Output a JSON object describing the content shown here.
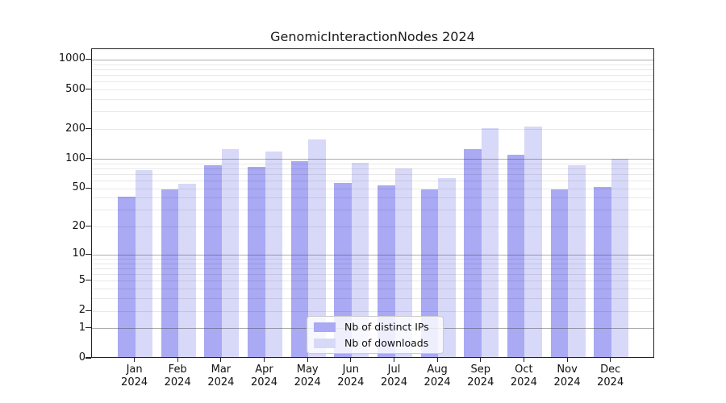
{
  "chart_data": {
    "type": "bar",
    "title": "GenomicInteractionNodes 2024",
    "categories": [
      "Jan",
      "Feb",
      "Mar",
      "Apr",
      "May",
      "Jun",
      "Jul",
      "Aug",
      "Sep",
      "Oct",
      "Nov",
      "Dec"
    ],
    "x_year_label": "2024",
    "series": [
      {
        "name": "Nb of distinct IPs",
        "color": "#a9a9f4",
        "values": [
          40,
          47,
          83,
          81,
          92,
          55,
          52,
          47,
          122,
          106,
          47,
          50
        ]
      },
      {
        "name": "Nb of downloads",
        "color": "#d8d8f9",
        "values": [
          75,
          54,
          122,
          116,
          152,
          88,
          78,
          62,
          200,
          207,
          84,
          98
        ]
      }
    ],
    "yscale": "log1p",
    "ylim": [
      0,
      1285
    ],
    "yticks": [
      0,
      1,
      2,
      5,
      10,
      20,
      50,
      100,
      200,
      500,
      1000
    ],
    "ytick_labels": [
      "0",
      "1",
      "2",
      "5",
      "10",
      "20",
      "50",
      "100",
      "200",
      "500",
      "1000"
    ],
    "grid": {
      "orientation": "horizontal",
      "major_lines_at": [
        1,
        10,
        100,
        1000
      ],
      "minor_lines": "2-9 of each decade",
      "major_color": "#b0b0b0",
      "minor_color": "#e9e9e9"
    },
    "legend": {
      "position": "inside-bottom-center",
      "entries": [
        "Nb of distinct IPs",
        "Nb of downloads"
      ]
    }
  }
}
